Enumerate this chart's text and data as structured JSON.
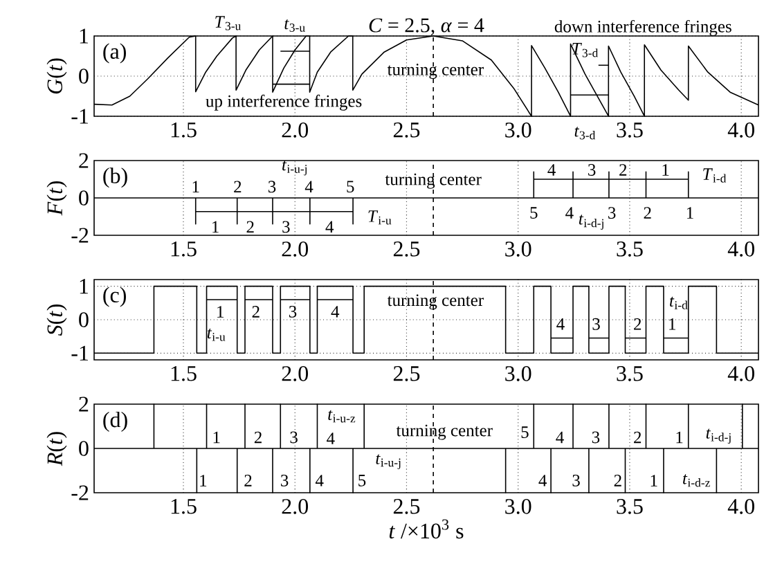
{
  "chart_data": [
    {
      "type": "line",
      "title": "*C* = 2.5, *α* = 4",
      "ylabel": "*G*(*t*)",
      "xlim": [
        1.1,
        4.077
      ],
      "ylim": [
        -1,
        1
      ],
      "xticks": [
        1.5,
        {
          "value": 2,
          "label": "2.0"
        },
        2.5,
        {
          "value": 3,
          "label": "3.0"
        },
        3.5,
        {
          "value": 4,
          "label": "4.0"
        }
      ],
      "yticks": [
        -1,
        0,
        1
      ],
      "grid": true,
      "ref_lines": [
        {
          "axis": "x",
          "value": 2.62,
          "line_style": "dashed"
        }
      ],
      "series": [
        {
          "color": "#000000",
          "x": [
            1.1,
            1.18,
            1.26,
            1.34,
            1.43,
            1.526,
            1.555,
            1.555,
            1.6,
            1.65,
            1.72,
            1.736,
            1.736,
            1.78,
            1.84,
            1.9,
            1.9,
            1.95,
            2.0,
            2.05,
            2.066,
            2.066,
            2.1,
            2.16,
            2.24,
            2.259,
            2.259,
            2.3,
            2.4,
            2.5,
            2.62,
            2.75,
            2.88,
            2.98,
            3.06,
            3.06,
            3.12,
            3.18,
            3.235,
            3.235,
            3.3,
            3.36,
            3.405,
            3.405,
            3.46,
            3.52,
            3.566,
            3.566,
            3.64,
            3.72,
            3.763,
            3.763,
            3.85,
            3.95,
            4.077
          ],
          "values": [
            -0.7,
            -0.72,
            -0.5,
            -0.07,
            0.45,
            0.97,
            1,
            -0.39,
            0.1,
            0.5,
            0.95,
            1,
            -0.35,
            0.15,
            0.65,
            1,
            -0.4,
            0.2,
            0.65,
            1,
            1,
            -0.4,
            0.1,
            0.6,
            1,
            1,
            -0.35,
            0.05,
            0.6,
            0.9,
            1,
            0.88,
            0.4,
            -0.3,
            -1,
            0.76,
            0.2,
            -0.4,
            -1,
            0.8,
            0.05,
            -0.55,
            -1,
            0.75,
            0.1,
            -0.5,
            -1,
            0.78,
            0.15,
            -0.35,
            -0.6,
            0.75,
            0.1,
            -0.4,
            -0.72
          ]
        },
        {
          "color": "#000000",
          "x": [
            1.935,
            2.066,
            null,
            1.9,
            2.066,
            null,
            3.36,
            3.405,
            null,
            3.235,
            3.405
          ],
          "values": [
            0.62,
            0.62,
            null,
            -0.2,
            -0.2,
            null,
            0.27,
            0.27,
            null,
            -0.47,
            -0.47
          ]
        }
      ],
      "annotations": [
        "(a)",
        "*T*$_{3-u}$",
        "*t*$_{3-u}$",
        "up interference fringes",
        "turning center",
        "down interference fringes",
        "*T*$_{3-d}$",
        "*t*$_{3-d}$"
      ]
    },
    {
      "type": "line",
      "ylabel": "*F*(*t*)",
      "xlim": [
        1.1,
        4.077
      ],
      "ylim": [
        -2,
        2
      ],
      "xticks": [
        1.5,
        {
          "value": 2,
          "label": "2.0"
        },
        2.5,
        {
          "value": 3,
          "label": "3.0"
        },
        3.5,
        {
          "value": 4,
          "label": "4.0"
        }
      ],
      "yticks": [
        -2,
        0,
        2
      ],
      "grid": "x",
      "ref_lines": [
        {
          "axis": "x",
          "value": 2.62,
          "line_style": "dashed"
        }
      ],
      "series": [
        {
          "color": "#000000",
          "x": [
            1.1,
            1.555,
            1.555,
            1.555,
            1.741,
            1.741,
            1.741,
            1.9,
            1.9,
            1.9,
            2.067,
            2.067,
            2.067,
            2.26,
            2.26,
            2.26,
            3.07,
            3.07,
            3.07,
            3.246,
            3.246,
            3.246,
            3.407,
            3.407,
            3.407,
            3.573,
            3.573,
            3.573,
            3.763,
            3.763,
            3.763,
            4.077
          ],
          "values": [
            0,
            0,
            -1.4,
            0,
            0,
            -1.4,
            0,
            0,
            -1.4,
            0,
            0,
            -1.4,
            0,
            0,
            -1.4,
            0,
            0,
            1.4,
            0,
            0,
            1.4,
            0,
            0,
            1.4,
            0,
            0,
            1.4,
            0,
            0,
            1.4,
            0,
            0
          ]
        },
        {
          "color": "#000000",
          "x": [
            1.555,
            1.741,
            null,
            1.741,
            1.9,
            null,
            1.9,
            2.067,
            null,
            2.067,
            2.26,
            null,
            3.07,
            3.246,
            null,
            3.246,
            3.407,
            null,
            3.407,
            3.573,
            null,
            3.573,
            3.763
          ],
          "values": [
            -0.73,
            -0.73,
            null,
            -0.73,
            -0.73,
            null,
            -0.73,
            -0.73,
            null,
            -0.73,
            -0.73,
            null,
            1,
            1,
            null,
            1,
            1,
            null,
            1,
            1,
            null,
            1,
            1
          ]
        }
      ],
      "annotations": [
        "(b)",
        "1",
        "2",
        "3",
        "4",
        "5",
        "*t*$_{i-u-j}$",
        "1",
        "2",
        "3",
        "4",
        "*T*$_{i-u}$",
        "turning center",
        "4",
        "3",
        "2",
        "1",
        "*T*$_{i-d}$",
        "5",
        "4",
        "3",
        "2",
        "1",
        "*t*$_{i-d-j}$"
      ]
    },
    {
      "type": "step",
      "ylabel": "*S*(*t*)",
      "xlim": [
        1.1,
        4.077
      ],
      "ylim": [
        -1.2,
        1.2
      ],
      "xticks": [
        1.5,
        {
          "value": 2,
          "label": "2.0"
        },
        2.5,
        {
          "value": 3,
          "label": "3.0"
        },
        3.5,
        {
          "value": 4,
          "label": "4.0"
        }
      ],
      "yticks": [
        -1,
        0,
        1
      ],
      "grid": true,
      "ref_lines": [
        {
          "axis": "x",
          "value": 2.62,
          "line_style": "dashed"
        }
      ],
      "series": [
        {
          "color": "#000000",
          "x": [
            1.1,
            1.368,
            1.56,
            1.604,
            1.741,
            1.776,
            1.9,
            1.935,
            2.067,
            2.1,
            2.26,
            2.31,
            2.944,
            3.07,
            3.147,
            3.246,
            3.317,
            3.407,
            3.48,
            3.573,
            3.652,
            3.763,
            3.889,
            4.077
          ],
          "values": [
            -1,
            1,
            -1,
            1,
            -1,
            1,
            -1,
            1,
            -1,
            1,
            -1,
            1,
            -1,
            1,
            -1,
            1,
            -1,
            1,
            -1,
            1,
            -1,
            1,
            -1,
            -1
          ]
        },
        {
          "type": "line",
          "color": "#000000",
          "x": [
            1.604,
            1.741,
            null,
            1.776,
            1.9,
            null,
            1.935,
            2.067,
            null,
            2.1,
            2.26,
            null,
            3.147,
            3.246,
            null,
            3.317,
            3.407,
            null,
            3.48,
            3.573,
            null,
            3.652,
            3.763
          ],
          "values": [
            0.6,
            0.6,
            null,
            0.6,
            0.6,
            null,
            0.6,
            0.6,
            null,
            0.6,
            0.6,
            null,
            -0.55,
            -0.55,
            null,
            -0.55,
            -0.55,
            null,
            -0.55,
            -0.55,
            null,
            -0.55,
            -0.55
          ]
        }
      ],
      "annotations": [
        "(c)",
        "1",
        "2",
        "3",
        "4",
        "*t*$_{i-u}$",
        "turning center",
        "4",
        "3",
        "2",
        "1",
        "*t*$_{i-d}$"
      ]
    },
    {
      "type": "line",
      "ylabel": "*R*(*t*)",
      "xlabel": "*t* /×10$^{3}$ s",
      "xlim": [
        1.1,
        4.077
      ],
      "ylim": [
        -2,
        2
      ],
      "xticks": [
        1.5,
        {
          "value": 2,
          "label": "2.0"
        },
        2.5,
        {
          "value": 3,
          "label": "3.0"
        },
        3.5,
        {
          "value": 4,
          "label": "4.0"
        }
      ],
      "yticks": [
        -2,
        0,
        2
      ],
      "grid": "x",
      "ref_lines": [
        {
          "axis": "x",
          "value": 2.62,
          "line_style": "dashed"
        }
      ],
      "series": [
        {
          "color": "#000000",
          "x": [
            1.1,
            1.368,
            1.368,
            1.368,
            1.56,
            1.56,
            1.56,
            1.604,
            1.604,
            1.604,
            1.741,
            1.741,
            1.741,
            1.776,
            1.776,
            1.776,
            1.9,
            1.9,
            1.9,
            1.935,
            1.935,
            1.935,
            2.067,
            2.067,
            2.067,
            2.1,
            2.1,
            2.1,
            2.26,
            2.26,
            2.26,
            2.31,
            2.31,
            2.31,
            2.944,
            2.944,
            2.944,
            3.07,
            3.07,
            3.07,
            3.147,
            3.147,
            3.147,
            3.246,
            3.246,
            3.246,
            3.317,
            3.317,
            3.317,
            3.407,
            3.407,
            3.407,
            3.48,
            3.48,
            3.48,
            3.573,
            3.573,
            3.573,
            3.652,
            3.652,
            3.652,
            3.763,
            3.763,
            3.763,
            3.889,
            3.889,
            3.889,
            4.005,
            4.005,
            4.005,
            4.077
          ],
          "values": [
            0,
            0,
            2,
            0,
            0,
            -2,
            0,
            0,
            2,
            0,
            0,
            -2,
            0,
            0,
            2,
            0,
            0,
            -2,
            0,
            0,
            2,
            0,
            0,
            -2,
            0,
            0,
            2,
            0,
            0,
            -2,
            0,
            0,
            2,
            0,
            0,
            -2,
            0,
            0,
            2,
            0,
            0,
            -2,
            0,
            0,
            2,
            0,
            0,
            -2,
            0,
            0,
            2,
            0,
            0,
            -2,
            0,
            0,
            2,
            0,
            0,
            -2,
            0,
            0,
            2,
            0,
            0,
            -2,
            0,
            0,
            2,
            0,
            0
          ]
        }
      ],
      "annotations": [
        "(d)",
        "1",
        "2",
        "3",
        "4",
        "*t*$_{i-u-z}$",
        "turning center",
        "5",
        "4",
        "3",
        "2",
        "1",
        "*t*$_{i-d-j}$",
        "1",
        "2",
        "3",
        "4",
        "5",
        "*t*$_{i-u-j}$",
        "4",
        "3",
        "2",
        "1",
        "*t*$_{i-d-z}$"
      ]
    }
  ]
}
